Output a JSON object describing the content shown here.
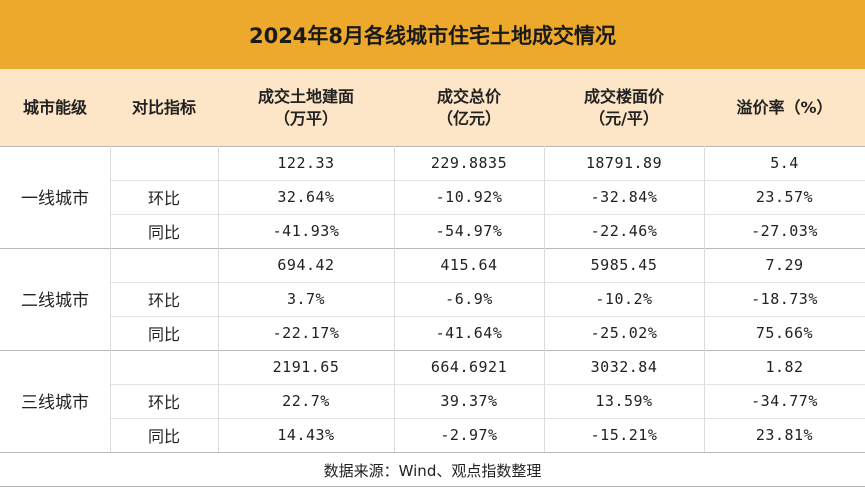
{
  "title": "2024年8月各线城市住宅土地成交情况",
  "headers": {
    "tier": "城市能级",
    "metric": "对比指标",
    "area_line1": "成交土地建面",
    "area_line2": "（万平）",
    "total_line1": "成交总价",
    "total_line2": "（亿元）",
    "price_line1": "成交楼面价",
    "price_line2": "（元/平）",
    "premium": "溢价率（%）"
  },
  "tiers": [
    {
      "name": "一线城市",
      "rows": [
        {
          "metric": "",
          "area": "122.33",
          "total": "229.8835",
          "price": "18791.89",
          "premium": "5.4"
        },
        {
          "metric": "环比",
          "area": "32.64%",
          "total": "-10.92%",
          "price": "-32.84%",
          "premium": "23.57%"
        },
        {
          "metric": "同比",
          "area": "-41.93%",
          "total": "-54.97%",
          "price": "-22.46%",
          "premium": "-27.03%"
        }
      ]
    },
    {
      "name": "二线城市",
      "rows": [
        {
          "metric": "",
          "area": "694.42",
          "total": "415.64",
          "price": "5985.45",
          "premium": "7.29"
        },
        {
          "metric": "环比",
          "area": "3.7%",
          "total": "-6.9%",
          "price": "-10.2%",
          "premium": "-18.73%"
        },
        {
          "metric": "同比",
          "area": "-22.17%",
          "total": "-41.64%",
          "price": "-25.02%",
          "premium": "75.66%"
        }
      ]
    },
    {
      "name": "三线城市",
      "rows": [
        {
          "metric": "",
          "area": "2191.65",
          "total": "664.6921",
          "price": "3032.84",
          "premium": "1.82"
        },
        {
          "metric": "环比",
          "area": "22.7%",
          "total": "39.37%",
          "price": "13.59%",
          "premium": "-34.77%"
        },
        {
          "metric": "同比",
          "area": "14.43%",
          "total": "-2.97%",
          "price": "-15.21%",
          "premium": "23.81%"
        }
      ]
    }
  ],
  "footer": "数据来源：Wind、观点指数整理",
  "colors": {
    "title_bg": "#eda92c",
    "header_bg": "#fde5c7"
  }
}
